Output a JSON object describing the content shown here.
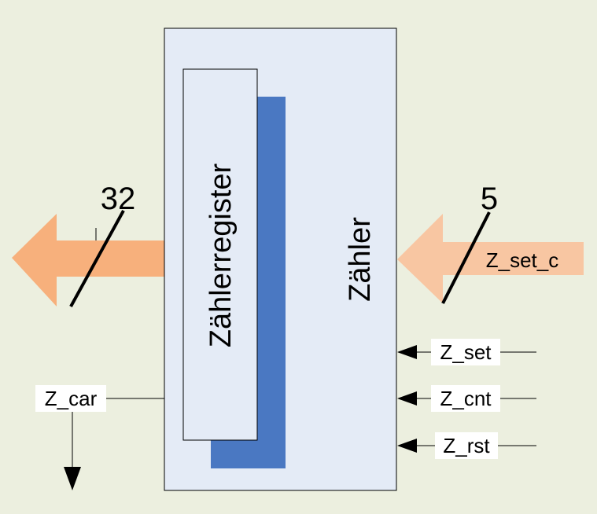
{
  "colors": {
    "background": "#ecefdf",
    "outer_box_fill": "#e4ebf6",
    "register_shadow": "#4a78c2",
    "bus_out": "#f7b07c",
    "bus_in": "#f8c6a2",
    "line": "#000000"
  },
  "counter": {
    "title": "Zähler"
  },
  "register": {
    "title": "Zählerregister"
  },
  "bus_out": {
    "width_label": "32"
  },
  "bus_in": {
    "width_label": "5",
    "signal": "Z_set_c"
  },
  "inputs": [
    {
      "label": "Z_set"
    },
    {
      "label": "Z_cnt"
    },
    {
      "label": "Z_rst"
    }
  ],
  "output": {
    "label": "Z_car"
  }
}
